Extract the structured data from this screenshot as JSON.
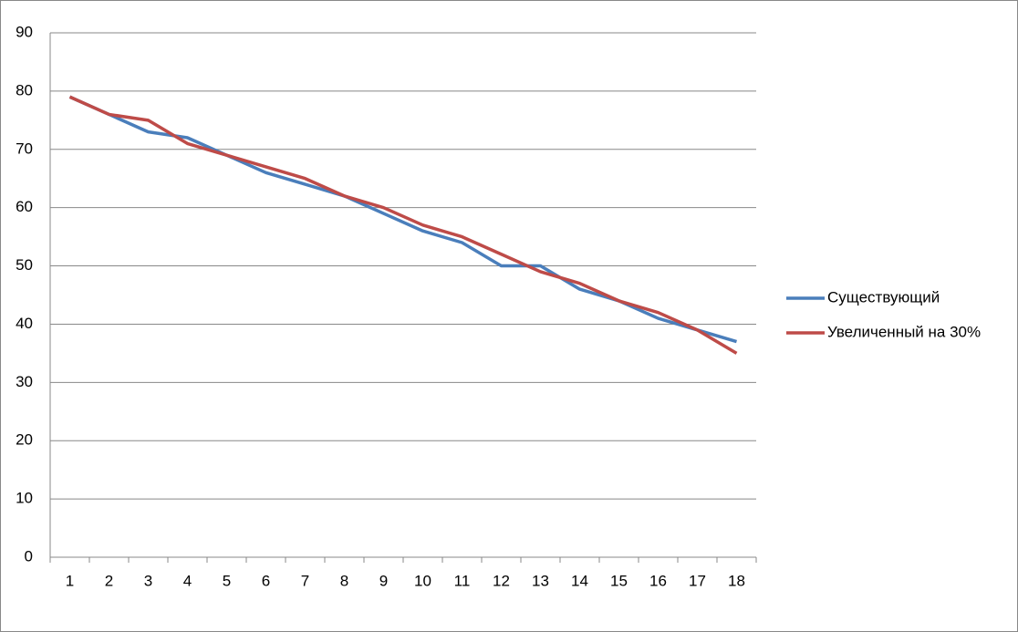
{
  "chart_data": {
    "type": "line",
    "categories": [
      "1",
      "2",
      "3",
      "4",
      "5",
      "6",
      "7",
      "8",
      "9",
      "10",
      "11",
      "12",
      "13",
      "14",
      "15",
      "16",
      "17",
      "18"
    ],
    "series": [
      {
        "name": "Существующий",
        "color": "#4a7ebb",
        "values": [
          79,
          76,
          73,
          72,
          69,
          66,
          64,
          62,
          59,
          56,
          54,
          50,
          50,
          46,
          44,
          41,
          39,
          37
        ]
      },
      {
        "name": "Увеличенный на 30%",
        "color": "#be4b48",
        "values": [
          79,
          76,
          75,
          71,
          69,
          67,
          65,
          62,
          60,
          57,
          55,
          52,
          49,
          47,
          44,
          42,
          39,
          35
        ]
      }
    ],
    "ylim": [
      0,
      90
    ],
    "yticks": [
      0,
      10,
      20,
      30,
      40,
      50,
      60,
      70,
      80,
      90
    ],
    "grid": true,
    "legend": "right"
  }
}
